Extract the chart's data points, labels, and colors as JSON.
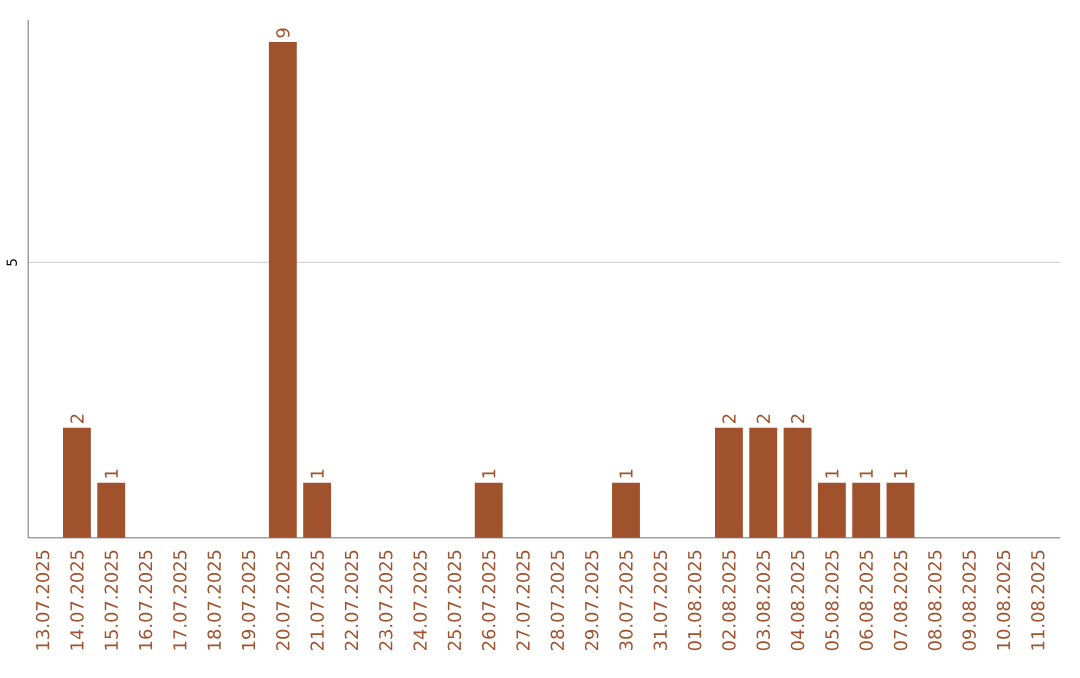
{
  "chart_data": {
    "type": "bar",
    "categories": [
      "13.07.2025",
      "14.07.2025",
      "15.07.2025",
      "16.07.2025",
      "17.07.2025",
      "18.07.2025",
      "19.07.2025",
      "20.07.2025",
      "21.07.2025",
      "22.07.2025",
      "23.07.2025",
      "24.07.2025",
      "25.07.2025",
      "26.07.2025",
      "27.07.2025",
      "28.07.2025",
      "29.07.2025",
      "30.07.2025",
      "31.07.2025",
      "01.08.2025",
      "02.08.2025",
      "03.08.2025",
      "04.08.2025",
      "05.08.2025",
      "06.08.2025",
      "07.08.2025",
      "08.08.2025",
      "09.08.2025",
      "10.08.2025",
      "11.08.2025"
    ],
    "values": [
      0,
      2,
      1,
      0,
      0,
      0,
      0,
      9,
      1,
      0,
      0,
      0,
      0,
      1,
      0,
      0,
      0,
      1,
      0,
      0,
      2,
      2,
      2,
      1,
      1,
      1,
      0,
      0,
      0,
      0
    ],
    "value_labels": [
      null,
      "2",
      "1",
      null,
      null,
      null,
      null,
      "9",
      "1",
      null,
      null,
      null,
      null,
      "1",
      null,
      null,
      null,
      "1",
      null,
      null,
      "2",
      "2",
      "2",
      "1",
      "1",
      "1",
      null,
      null,
      null,
      null
    ],
    "color": "#a0522d",
    "ylim": [
      0,
      9.4
    ],
    "yticks": [
      5
    ],
    "grid": "y"
  }
}
